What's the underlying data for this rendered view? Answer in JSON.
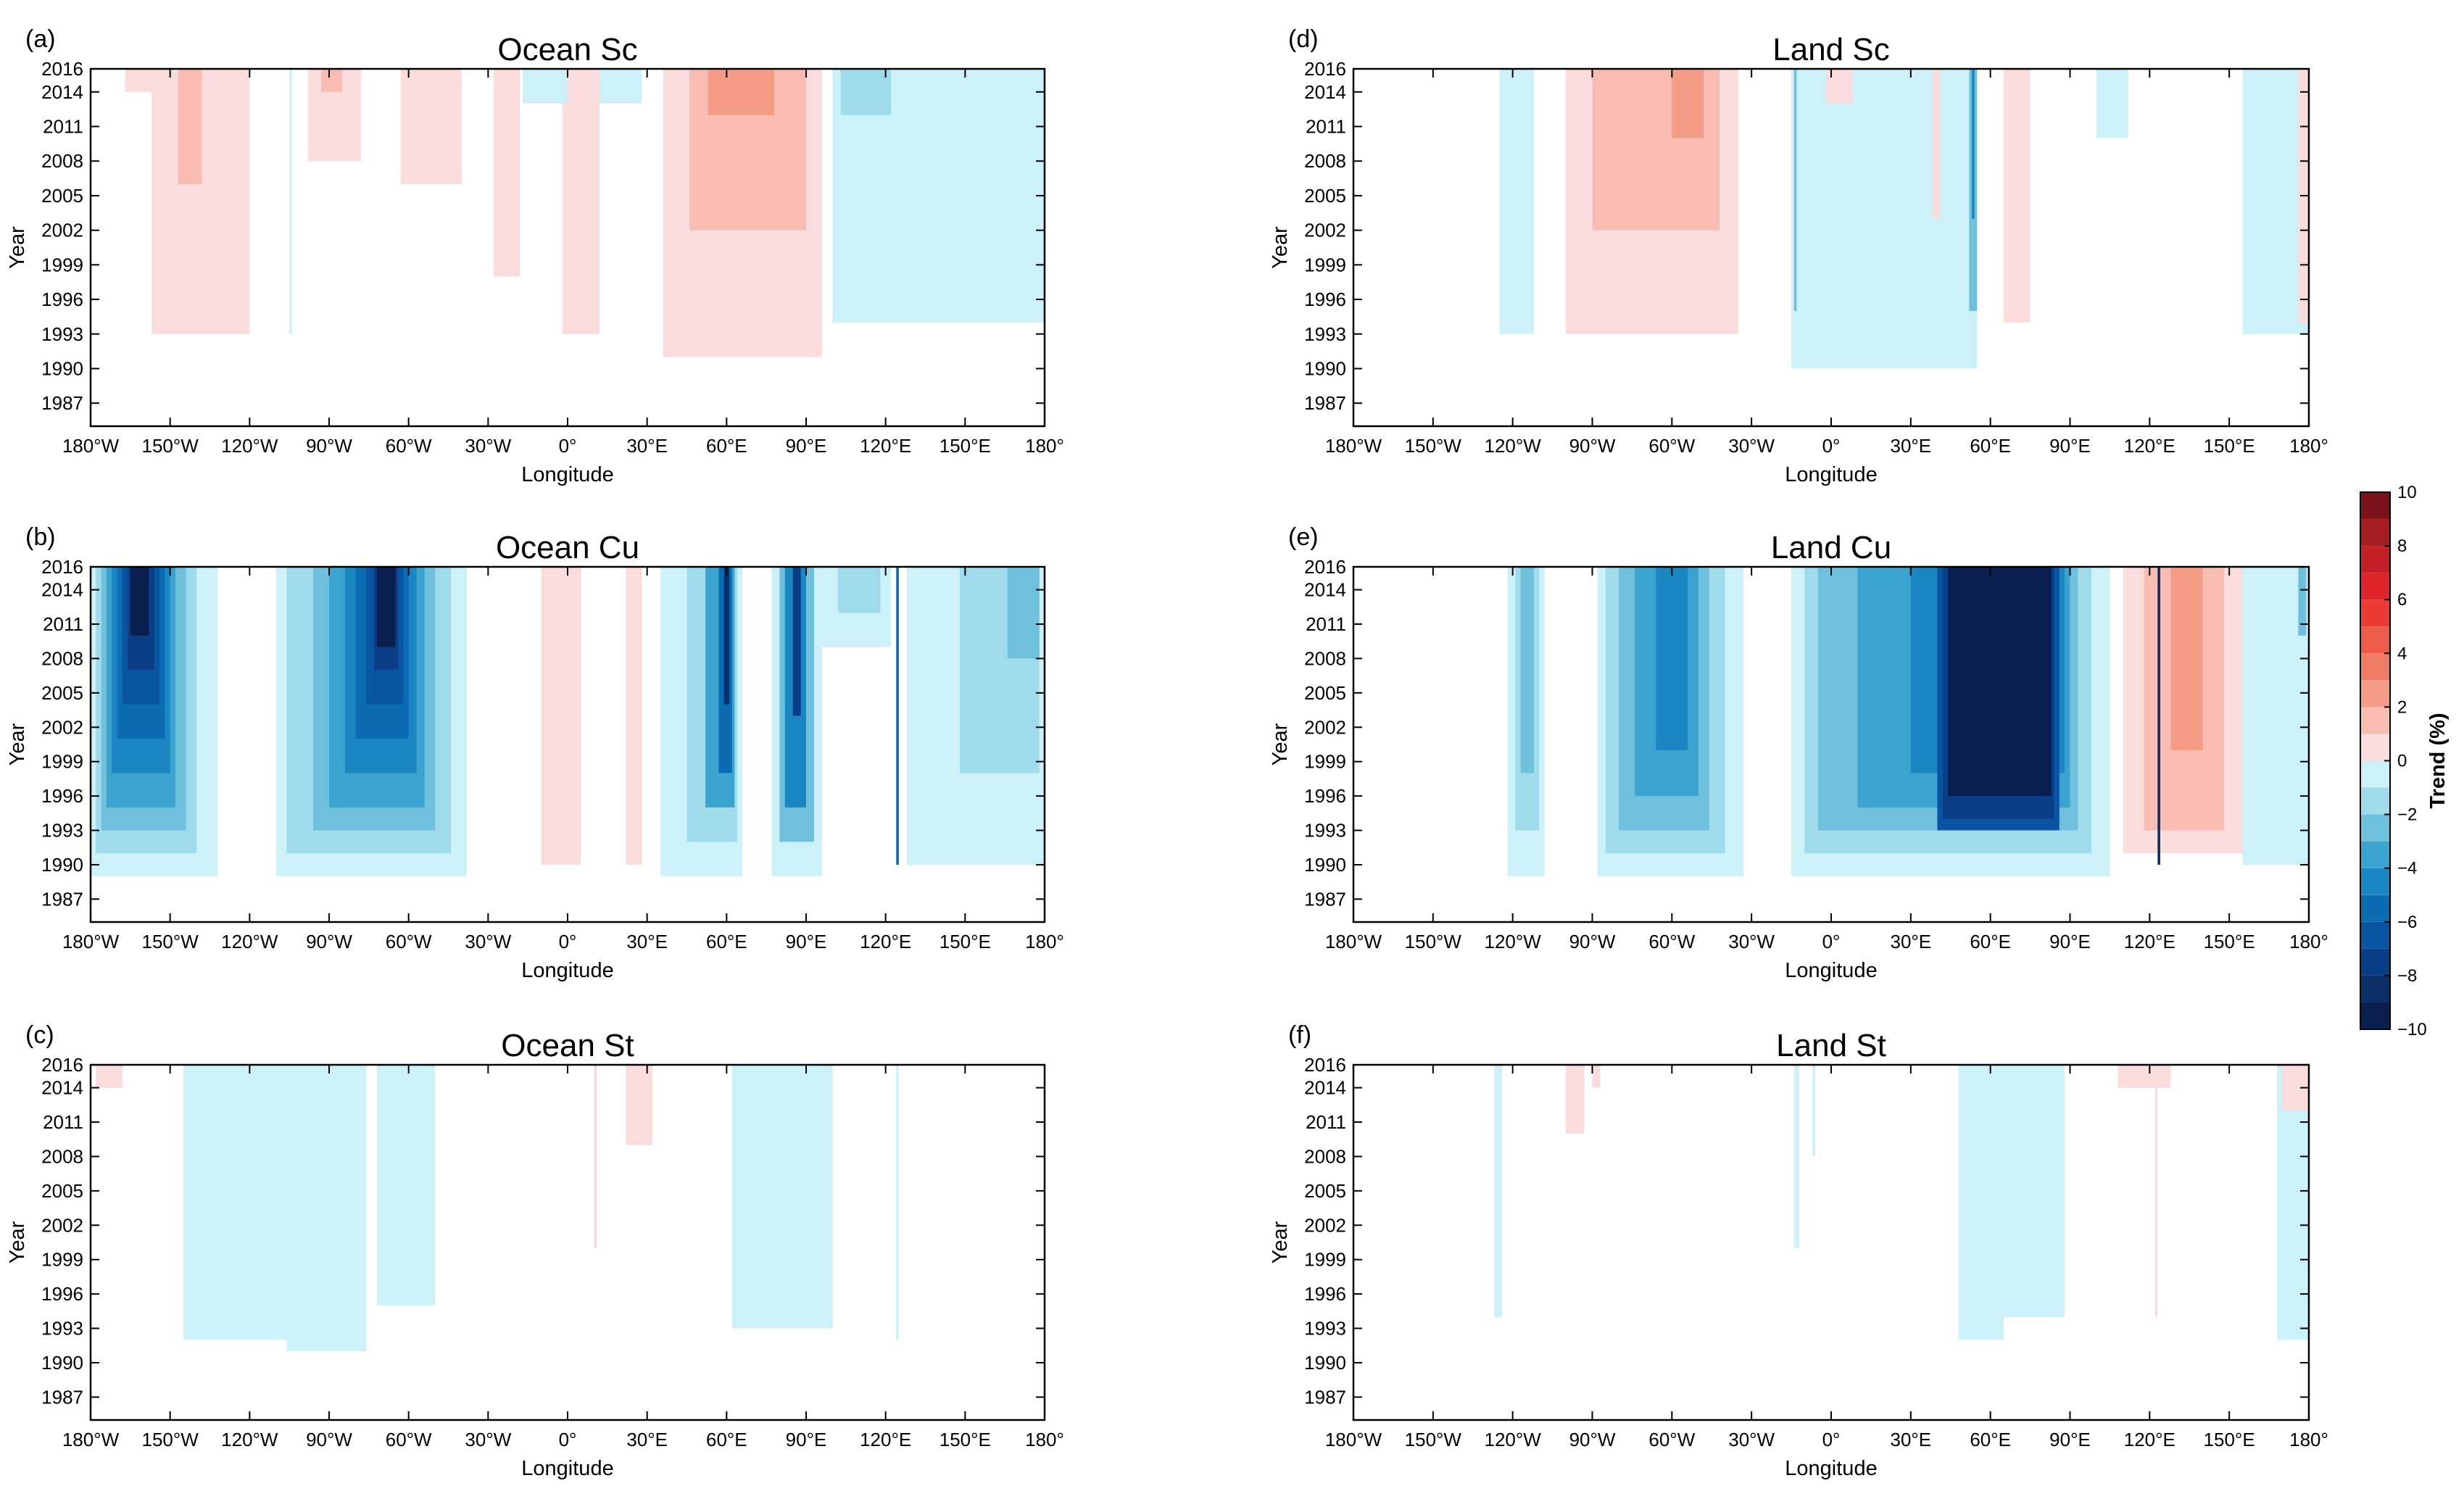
{
  "figure": {
    "y_axis_label": "Year",
    "x_axis_label": "Longitude",
    "year_ticks": [
      "1987",
      "1990",
      "1993",
      "1996",
      "1999",
      "2002",
      "2005",
      "2008",
      "2011",
      "2014",
      "2016"
    ],
    "lon_ticks": [
      "180°W",
      "150°W",
      "120°W",
      "90°W",
      "60°W",
      "30°W",
      "0°",
      "30°E",
      "60°E",
      "90°E",
      "120°E",
      "150°E",
      "180°"
    ]
  },
  "colorbar": {
    "label": "Trend (%)",
    "tick_labels": [
      "10",
      "8",
      "6",
      "4",
      "2",
      "0",
      "−2",
      "−4",
      "−6",
      "−8",
      "−10"
    ],
    "colors": {
      "n10": "#0b1f4f",
      "n9": "#0b2f68",
      "n8": "#0a3e86",
      "n7": "#0a55a3",
      "n6": "#0b6cb3",
      "n5": "#1a86c2",
      "n4": "#3ba3cf",
      "n3": "#6fc0dd",
      "n2": "#9fdbea",
      "n1": "#cdf1f8",
      "zero": "#ffffff",
      "p1": "#fbdcdc",
      "p2": "#f8bcb3",
      "p3": "#f49c86",
      "p4": "#f07c66",
      "p5": "#ee5b48",
      "p6": "#ec3b35",
      "p7": "#e0252a",
      "p8": "#c51f26",
      "p9": "#a71b22",
      "p10": "#7c121c"
    }
  },
  "chart_data": [
    {
      "type": "heatmap",
      "panel_label": "(a)",
      "title": "Ocean Sc",
      "xlabel": "Longitude",
      "ylabel": "Year",
      "xlim": [
        -180,
        180
      ],
      "ylim": [
        1985,
        2016
      ],
      "regions": [
        {
          "lon": [
            -167,
            -150
          ],
          "start_year": 2014,
          "trend": 1
        },
        {
          "lon": [
            -157,
            -120
          ],
          "start_year": 1993,
          "trend": 1
        },
        {
          "lon": [
            -147,
            -138
          ],
          "start_year": 2006,
          "trend": 2
        },
        {
          "lon": [
            -98,
            -78
          ],
          "start_year": 2008,
          "trend": 1
        },
        {
          "lon": [
            -93,
            -85
          ],
          "start_year": 2014,
          "trend": 2
        },
        {
          "lon": [
            -63,
            -40
          ],
          "start_year": 2006,
          "trend": 1
        },
        {
          "lon": [
            -28,
            -18
          ],
          "start_year": 1998,
          "trend": 1
        },
        {
          "lon": [
            -2,
            12
          ],
          "start_year": 1993,
          "trend": 1
        },
        {
          "lon": [
            36,
            96
          ],
          "start_year": 1991,
          "trend": 1
        },
        {
          "lon": [
            46,
            90
          ],
          "start_year": 2002,
          "trend": 2
        },
        {
          "lon": [
            53,
            78
          ],
          "start_year": 2012,
          "trend": 3
        },
        {
          "lon": [
            -17,
            0
          ],
          "start_year": 2013,
          "trend": -1
        },
        {
          "lon": [
            12,
            28
          ],
          "start_year": 2013,
          "trend": -1
        },
        {
          "lon": [
            100,
            180
          ],
          "start_year": 1994,
          "trend": -1
        },
        {
          "lon": [
            103,
            122
          ],
          "start_year": 2012,
          "trend": -2
        },
        {
          "lon": [
            -105,
            -104
          ],
          "start_year": 1993,
          "trend": -1
        }
      ]
    },
    {
      "type": "heatmap",
      "panel_label": "(b)",
      "title": "Ocean Cu",
      "xlabel": "Longitude",
      "ylabel": "Year",
      "xlim": [
        -180,
        180
      ],
      "ylim": [
        1985,
        2016
      ],
      "regions": [
        {
          "lon": [
            -180,
            -132
          ],
          "start_year": 1989,
          "trend": -1
        },
        {
          "lon": [
            -178,
            -140
          ],
          "start_year": 1991,
          "trend": -2
        },
        {
          "lon": [
            -176,
            -144
          ],
          "start_year": 1993,
          "trend": -3
        },
        {
          "lon": [
            -174,
            -148
          ],
          "start_year": 1995,
          "trend": -4
        },
        {
          "lon": [
            -172,
            -150
          ],
          "start_year": 1998,
          "trend": -5
        },
        {
          "lon": [
            -170,
            -152
          ],
          "start_year": 2001,
          "trend": -6
        },
        {
          "lon": [
            -168,
            -154
          ],
          "start_year": 2004,
          "trend": -7
        },
        {
          "lon": [
            -166,
            -156
          ],
          "start_year": 2007,
          "trend": -8
        },
        {
          "lon": [
            -165,
            -158
          ],
          "start_year": 2010,
          "trend": -10
        },
        {
          "lon": [
            -110,
            -38
          ],
          "start_year": 1989,
          "trend": -1
        },
        {
          "lon": [
            -106,
            -44
          ],
          "start_year": 1991,
          "trend": -2
        },
        {
          "lon": [
            -96,
            -50
          ],
          "start_year": 1993,
          "trend": -3
        },
        {
          "lon": [
            -90,
            -54
          ],
          "start_year": 1995,
          "trend": -4
        },
        {
          "lon": [
            -84,
            -57
          ],
          "start_year": 1998,
          "trend": -5
        },
        {
          "lon": [
            -80,
            -60
          ],
          "start_year": 2001,
          "trend": -6
        },
        {
          "lon": [
            -76,
            -62
          ],
          "start_year": 2004,
          "trend": -7
        },
        {
          "lon": [
            -73,
            -64
          ],
          "start_year": 2007,
          "trend": -8
        },
        {
          "lon": [
            -72,
            -65
          ],
          "start_year": 2009,
          "trend": -10
        },
        {
          "lon": [
            -10,
            5
          ],
          "start_year": 1990,
          "trend": 1
        },
        {
          "lon": [
            22,
            28
          ],
          "start_year": 1990,
          "trend": 1
        },
        {
          "lon": [
            35,
            66
          ],
          "start_year": 1989,
          "trend": -1
        },
        {
          "lon": [
            45,
            64
          ],
          "start_year": 1992,
          "trend": -2
        },
        {
          "lon": [
            52,
            63
          ],
          "start_year": 1995,
          "trend": -4
        },
        {
          "lon": [
            57,
            62
          ],
          "start_year": 1998,
          "trend": -6
        },
        {
          "lon": [
            59,
            61
          ],
          "start_year": 2004,
          "trend": -9
        },
        {
          "lon": [
            77,
            96
          ],
          "start_year": 1989,
          "trend": -1
        },
        {
          "lon": [
            80,
            93
          ],
          "start_year": 1992,
          "trend": -3
        },
        {
          "lon": [
            82,
            90
          ],
          "start_year": 1995,
          "trend": -5
        },
        {
          "lon": [
            85,
            88
          ],
          "start_year": 2003,
          "trend": -8
        },
        {
          "lon": [
            96,
            122
          ],
          "start_year": 2009,
          "trend": -1
        },
        {
          "lon": [
            102,
            118
          ],
          "start_year": 2012,
          "trend": -2
        },
        {
          "lon": [
            124,
            125
          ],
          "start_year": 1990,
          "trend": -6
        },
        {
          "lon": [
            128,
            180
          ],
          "start_year": 1990,
          "trend": -1
        },
        {
          "lon": [
            148,
            178
          ],
          "start_year": 1998,
          "trend": -2
        },
        {
          "lon": [
            166,
            178
          ],
          "start_year": 2008,
          "trend": -3
        }
      ]
    },
    {
      "type": "heatmap",
      "panel_label": "(c)",
      "title": "Ocean St",
      "xlabel": "Longitude",
      "ylabel": "Year",
      "xlim": [
        -180,
        180
      ],
      "ylim": [
        1985,
        2016
      ],
      "regions": [
        {
          "lon": [
            -178,
            -168
          ],
          "start_year": 2014,
          "trend": 1
        },
        {
          "lon": [
            -162,
            -158
          ],
          "start_year": 2016,
          "trend": 1
        },
        {
          "lon": [
            -145,
            -106
          ],
          "start_year": 1992,
          "trend": -1
        },
        {
          "lon": [
            -106,
            -76
          ],
          "start_year": 1991,
          "trend": -1
        },
        {
          "lon": [
            -72,
            -50
          ],
          "start_year": 1995,
          "trend": -1
        },
        {
          "lon": [
            22,
            32
          ],
          "start_year": 2009,
          "trend": 1
        },
        {
          "lon": [
            10,
            11
          ],
          "start_year": 2000,
          "trend": 1
        },
        {
          "lon": [
            62,
            100
          ],
          "start_year": 1993,
          "trend": -1
        },
        {
          "lon": [
            124,
            125
          ],
          "start_year": 1992,
          "trend": -1
        }
      ]
    },
    {
      "type": "heatmap",
      "panel_label": "(d)",
      "title": "Land Sc",
      "xlabel": "Longitude",
      "ylabel": "Year",
      "xlim": [
        -180,
        180
      ],
      "ylim": [
        1985,
        2016
      ],
      "regions": [
        {
          "lon": [
            -125,
            -112
          ],
          "start_year": 1993,
          "trend": -1
        },
        {
          "lon": [
            -100,
            -35
          ],
          "start_year": 1993,
          "trend": 1
        },
        {
          "lon": [
            -90,
            -42
          ],
          "start_year": 2002,
          "trend": 2
        },
        {
          "lon": [
            -60,
            -48
          ],
          "start_year": 2010,
          "trend": 3
        },
        {
          "lon": [
            -15,
            55
          ],
          "start_year": 1990,
          "trend": -1
        },
        {
          "lon": [
            -14,
            -13
          ],
          "start_year": 1995,
          "trend": -3
        },
        {
          "lon": [
            52,
            55
          ],
          "start_year": 1995,
          "trend": -3
        },
        {
          "lon": [
            53,
            54
          ],
          "start_year": 2003,
          "trend": -5
        },
        {
          "lon": [
            -2,
            8
          ],
          "start_year": 2013,
          "trend": 1
        },
        {
          "lon": [
            38,
            41
          ],
          "start_year": 2003,
          "trend": 1
        },
        {
          "lon": [
            65,
            75
          ],
          "start_year": 1994,
          "trend": 1
        },
        {
          "lon": [
            100,
            112
          ],
          "start_year": 2010,
          "trend": -1
        },
        {
          "lon": [
            155,
            180
          ],
          "start_year": 1993,
          "trend": -1
        },
        {
          "lon": [
            176,
            180
          ],
          "start_year": 1994,
          "trend": 1
        }
      ]
    },
    {
      "type": "heatmap",
      "panel_label": "(e)",
      "title": "Land Cu",
      "xlabel": "Longitude",
      "ylabel": "Year",
      "xlim": [
        -180,
        180
      ],
      "ylim": [
        1985,
        2016
      ],
      "regions": [
        {
          "lon": [
            -122,
            -108
          ],
          "start_year": 1989,
          "trend": -1
        },
        {
          "lon": [
            -119,
            -110
          ],
          "start_year": 1993,
          "trend": -2
        },
        {
          "lon": [
            -117,
            -112
          ],
          "start_year": 1998,
          "trend": -3
        },
        {
          "lon": [
            -88,
            -33
          ],
          "start_year": 1989,
          "trend": -1
        },
        {
          "lon": [
            -85,
            -40
          ],
          "start_year": 1991,
          "trend": -2
        },
        {
          "lon": [
            -80,
            -46
          ],
          "start_year": 1993,
          "trend": -3
        },
        {
          "lon": [
            -74,
            -50
          ],
          "start_year": 1996,
          "trend": -4
        },
        {
          "lon": [
            -66,
            -54
          ],
          "start_year": 2000,
          "trend": -5
        },
        {
          "lon": [
            -15,
            105
          ],
          "start_year": 1989,
          "trend": -1
        },
        {
          "lon": [
            -10,
            98
          ],
          "start_year": 1991,
          "trend": -2
        },
        {
          "lon": [
            -5,
            93
          ],
          "start_year": 1993,
          "trend": -3
        },
        {
          "lon": [
            10,
            90
          ],
          "start_year": 1995,
          "trend": -4
        },
        {
          "lon": [
            30,
            88
          ],
          "start_year": 1998,
          "trend": -5
        },
        {
          "lon": [
            40,
            86
          ],
          "start_year": 1993,
          "trend": -7
        },
        {
          "lon": [
            42,
            84
          ],
          "start_year": 1994,
          "trend": -8
        },
        {
          "lon": [
            44,
            83
          ],
          "start_year": 1996,
          "trend": -10
        },
        {
          "lon": [
            110,
            155
          ],
          "start_year": 1991,
          "trend": 1
        },
        {
          "lon": [
            118,
            148
          ],
          "start_year": 1993,
          "trend": 2
        },
        {
          "lon": [
            128,
            140
          ],
          "start_year": 2000,
          "trend": 3
        },
        {
          "lon": [
            123,
            124
          ],
          "start_year": 1990,
          "trend": -9
        },
        {
          "lon": [
            155,
            180
          ],
          "start_year": 1990,
          "trend": -1
        },
        {
          "lon": [
            176,
            179
          ],
          "start_year": 2010,
          "trend": -3
        }
      ]
    },
    {
      "type": "heatmap",
      "panel_label": "(f)",
      "title": "Land St",
      "xlabel": "Longitude",
      "ylabel": "Year",
      "xlim": [
        -180,
        180
      ],
      "ylim": [
        1985,
        2016
      ],
      "regions": [
        {
          "lon": [
            -127,
            -124
          ],
          "start_year": 1994,
          "trend": -1
        },
        {
          "lon": [
            -100,
            -93
          ],
          "start_year": 2010,
          "trend": 1
        },
        {
          "lon": [
            -90,
            -87
          ],
          "start_year": 2014,
          "trend": 1
        },
        {
          "lon": [
            -14,
            -12
          ],
          "start_year": 2000,
          "trend": -1
        },
        {
          "lon": [
            -7,
            -6
          ],
          "start_year": 2008,
          "trend": -1
        },
        {
          "lon": [
            48,
            65
          ],
          "start_year": 1992,
          "trend": -1
        },
        {
          "lon": [
            65,
            88
          ],
          "start_year": 1994,
          "trend": -1
        },
        {
          "lon": [
            108,
            128
          ],
          "start_year": 2014,
          "trend": 1
        },
        {
          "lon": [
            122,
            123
          ],
          "start_year": 1994,
          "trend": 1
        },
        {
          "lon": [
            168,
            180
          ],
          "start_year": 1992,
          "trend": -1
        },
        {
          "lon": [
            170,
            180
          ],
          "start_year": 2012,
          "trend": 1
        }
      ]
    }
  ]
}
